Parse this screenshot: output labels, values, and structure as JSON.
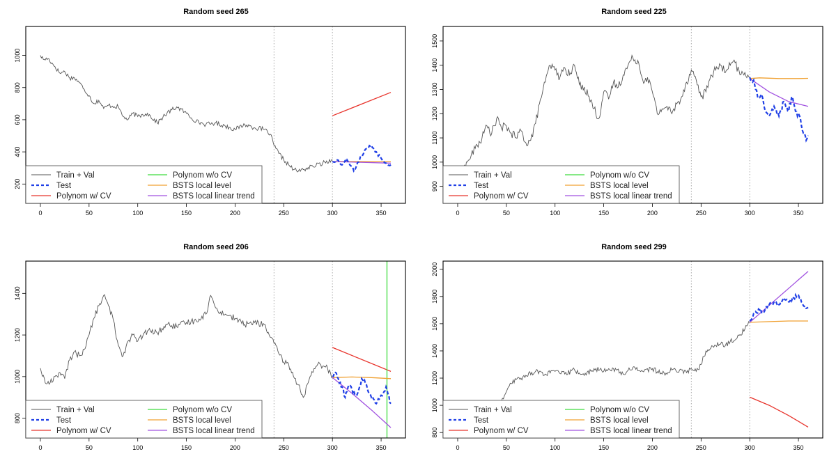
{
  "legend_labels": {
    "train_val": "Train + Val",
    "test": "Test",
    "poly_cv": "Polynom w/ CV",
    "poly_nocv": "Polynom w/o CV",
    "bsts_ll": "BSTS local level",
    "bsts_llt": "BSTS local linear trend"
  },
  "colors": {
    "train_val": "#555555",
    "test": "#1f3fe6",
    "poly_cv": "#e8342c",
    "poly_nocv": "#3ddc3d",
    "bsts_ll": "#f0a030",
    "bsts_llt": "#a050e0",
    "vline": "#aaaaaa"
  },
  "chart_data": [
    {
      "type": "line",
      "title": "Random seed 265",
      "xlim": [
        -15,
        375
      ],
      "ylim": [
        80,
        1180
      ],
      "xticks": [
        0,
        50,
        100,
        150,
        200,
        250,
        300,
        350
      ],
      "yticks": [
        200,
        400,
        600,
        800,
        1000
      ],
      "vlines": [
        240,
        300
      ],
      "train_anchors": [
        [
          0,
          1000
        ],
        [
          3,
          975
        ],
        [
          8,
          980
        ],
        [
          15,
          930
        ],
        [
          20,
          890
        ],
        [
          25,
          900
        ],
        [
          30,
          860
        ],
        [
          35,
          860
        ],
        [
          40,
          830
        ],
        [
          45,
          790
        ],
        [
          50,
          750
        ],
        [
          55,
          700
        ],
        [
          60,
          720
        ],
        [
          65,
          670
        ],
        [
          70,
          690
        ],
        [
          80,
          680
        ],
        [
          85,
          620
        ],
        [
          90,
          600
        ],
        [
          95,
          640
        ],
        [
          100,
          620
        ],
        [
          110,
          640
        ],
        [
          120,
          580
        ],
        [
          130,
          640
        ],
        [
          140,
          680
        ],
        [
          150,
          640
        ],
        [
          160,
          590
        ],
        [
          170,
          570
        ],
        [
          180,
          580
        ],
        [
          190,
          560
        ],
        [
          200,
          540
        ],
        [
          210,
          570
        ],
        [
          220,
          550
        ],
        [
          230,
          540
        ],
        [
          236,
          510
        ],
        [
          240,
          440
        ],
        [
          245,
          390
        ],
        [
          250,
          350
        ],
        [
          255,
          320
        ],
        [
          260,
          290
        ],
        [
          265,
          280
        ],
        [
          270,
          290
        ],
        [
          280,
          310
        ],
        [
          290,
          330
        ],
        [
          300,
          350
        ]
      ],
      "train_noise": 14,
      "test_anchors": [
        [
          300,
          340
        ],
        [
          305,
          350
        ],
        [
          310,
          320
        ],
        [
          315,
          350
        ],
        [
          320,
          310
        ],
        [
          322,
          280
        ],
        [
          325,
          320
        ],
        [
          330,
          380
        ],
        [
          335,
          420
        ],
        [
          340,
          440
        ],
        [
          345,
          400
        ],
        [
          350,
          360
        ],
        [
          355,
          330
        ],
        [
          360,
          320
        ]
      ],
      "test_noise": 10,
      "poly_cv": [
        [
          300,
          625
        ],
        [
          360,
          770
        ]
      ],
      "poly_nocv": null,
      "bsts_ll": [
        [
          300,
          340
        ],
        [
          360,
          340
        ]
      ],
      "bsts_llt": [
        [
          300,
          340
        ],
        [
          360,
          330
        ]
      ],
      "nocv_vertical": null
    },
    {
      "type": "line",
      "title": "Random seed 225",
      "xlim": [
        -15,
        375
      ],
      "ylim": [
        830,
        1560
      ],
      "xticks": [
        0,
        50,
        100,
        150,
        200,
        250,
        300,
        350
      ],
      "yticks": [
        900,
        1000,
        1100,
        1200,
        1300,
        1400,
        1500
      ],
      "vlines": [
        240,
        300
      ],
      "train_anchors": [
        [
          0,
          940
        ],
        [
          5,
          960
        ],
        [
          10,
          1000
        ],
        [
          20,
          1070
        ],
        [
          25,
          1100
        ],
        [
          30,
          1150
        ],
        [
          35,
          1120
        ],
        [
          40,
          1180
        ],
        [
          45,
          1140
        ],
        [
          50,
          1150
        ],
        [
          55,
          1120
        ],
        [
          60,
          1100
        ],
        [
          65,
          1130
        ],
        [
          70,
          1080
        ],
        [
          75,
          1090
        ],
        [
          80,
          1160
        ],
        [
          85,
          1260
        ],
        [
          90,
          1330
        ],
        [
          95,
          1400
        ],
        [
          100,
          1380
        ],
        [
          105,
          1350
        ],
        [
          110,
          1390
        ],
        [
          115,
          1360
        ],
        [
          120,
          1400
        ],
        [
          125,
          1320
        ],
        [
          130,
          1310
        ],
        [
          135,
          1270
        ],
        [
          140,
          1220
        ],
        [
          145,
          1180
        ],
        [
          150,
          1290
        ],
        [
          155,
          1260
        ],
        [
          160,
          1330
        ],
        [
          165,
          1310
        ],
        [
          170,
          1360
        ],
        [
          175,
          1400
        ],
        [
          180,
          1430
        ],
        [
          185,
          1420
        ],
        [
          190,
          1340
        ],
        [
          195,
          1350
        ],
        [
          200,
          1290
        ],
        [
          205,
          1200
        ],
        [
          210,
          1220
        ],
        [
          215,
          1230
        ],
        [
          220,
          1200
        ],
        [
          225,
          1240
        ],
        [
          230,
          1270
        ],
        [
          235,
          1330
        ],
        [
          240,
          1380
        ],
        [
          245,
          1340
        ],
        [
          250,
          1270
        ],
        [
          255,
          1290
        ],
        [
          260,
          1360
        ],
        [
          265,
          1380
        ],
        [
          270,
          1400
        ],
        [
          275,
          1370
        ],
        [
          280,
          1400
        ],
        [
          285,
          1410
        ],
        [
          290,
          1360
        ],
        [
          295,
          1370
        ],
        [
          300,
          1350
        ]
      ],
      "train_noise": 18,
      "test_anchors": [
        [
          300,
          1350
        ],
        [
          305,
          1320
        ],
        [
          308,
          1270
        ],
        [
          312,
          1280
        ],
        [
          316,
          1210
        ],
        [
          320,
          1190
        ],
        [
          325,
          1230
        ],
        [
          330,
          1190
        ],
        [
          335,
          1250
        ],
        [
          340,
          1210
        ],
        [
          343,
          1270
        ],
        [
          347,
          1210
        ],
        [
          352,
          1180
        ],
        [
          355,
          1120
        ],
        [
          358,
          1090
        ],
        [
          360,
          1110
        ]
      ],
      "test_noise": 12,
      "poly_cv": null,
      "poly_nocv": null,
      "bsts_ll": [
        [
          300,
          1345
        ],
        [
          310,
          1348
        ],
        [
          330,
          1345
        ],
        [
          350,
          1345
        ],
        [
          360,
          1346
        ]
      ],
      "bsts_llt": [
        [
          300,
          1345
        ],
        [
          320,
          1290
        ],
        [
          340,
          1250
        ],
        [
          360,
          1230
        ]
      ],
      "nocv_vertical": null
    },
    {
      "type": "line",
      "title": "Random seed 206",
      "xlim": [
        -15,
        375
      ],
      "ylim": [
        705,
        1555
      ],
      "xticks": [
        0,
        50,
        100,
        150,
        200,
        250,
        300,
        350
      ],
      "yticks": [
        800,
        1000,
        1200,
        1400
      ],
      "vlines": [
        240,
        300
      ],
      "train_anchors": [
        [
          0,
          1040
        ],
        [
          5,
          970
        ],
        [
          10,
          970
        ],
        [
          15,
          1000
        ],
        [
          20,
          1020
        ],
        [
          25,
          990
        ],
        [
          30,
          1080
        ],
        [
          35,
          1120
        ],
        [
          40,
          1100
        ],
        [
          45,
          1130
        ],
        [
          50,
          1200
        ],
        [
          55,
          1280
        ],
        [
          60,
          1340
        ],
        [
          65,
          1390
        ],
        [
          70,
          1340
        ],
        [
          75,
          1270
        ],
        [
          80,
          1150
        ],
        [
          85,
          1100
        ],
        [
          90,
          1170
        ],
        [
          95,
          1200
        ],
        [
          100,
          1170
        ],
        [
          110,
          1220
        ],
        [
          120,
          1210
        ],
        [
          130,
          1250
        ],
        [
          140,
          1240
        ],
        [
          150,
          1260
        ],
        [
          160,
          1270
        ],
        [
          170,
          1300
        ],
        [
          175,
          1390
        ],
        [
          180,
          1330
        ],
        [
          185,
          1310
        ],
        [
          190,
          1300
        ],
        [
          200,
          1280
        ],
        [
          210,
          1250
        ],
        [
          220,
          1260
        ],
        [
          230,
          1250
        ],
        [
          235,
          1200
        ],
        [
          240,
          1160
        ],
        [
          245,
          1110
        ],
        [
          250,
          1070
        ],
        [
          255,
          1060
        ],
        [
          260,
          1000
        ],
        [
          265,
          960
        ],
        [
          270,
          900
        ],
        [
          275,
          970
        ],
        [
          280,
          1020
        ],
        [
          285,
          1060
        ],
        [
          290,
          1050
        ],
        [
          295,
          1040
        ],
        [
          300,
          1000
        ]
      ],
      "train_noise": 15,
      "test_anchors": [
        [
          300,
          1000
        ],
        [
          303,
          1020
        ],
        [
          306,
          990
        ],
        [
          310,
          950
        ],
        [
          313,
          900
        ],
        [
          317,
          960
        ],
        [
          320,
          940
        ],
        [
          325,
          910
        ],
        [
          330,
          990
        ],
        [
          335,
          960
        ],
        [
          340,
          900
        ],
        [
          345,
          870
        ],
        [
          350,
          910
        ],
        [
          355,
          950
        ],
        [
          360,
          870
        ]
      ],
      "test_noise": 12,
      "poly_cv": [
        [
          300,
          1140
        ],
        [
          360,
          1025
        ]
      ],
      "poly_nocv": null,
      "bsts_ll": [
        [
          300,
          995
        ],
        [
          320,
          998
        ],
        [
          340,
          995
        ],
        [
          360,
          990
        ]
      ],
      "bsts_llt": [
        [
          300,
          995
        ],
        [
          320,
          920
        ],
        [
          340,
          840
        ],
        [
          360,
          755
        ]
      ],
      "nocv_vertical": 356
    },
    {
      "type": "line",
      "title": "Random seed 299",
      "xlim": [
        -15,
        375
      ],
      "ylim": [
        760,
        2060
      ],
      "xticks": [
        0,
        50,
        100,
        150,
        200,
        250,
        300,
        350
      ],
      "yticks": [
        800,
        1000,
        1200,
        1400,
        1600,
        1800,
        2000
      ],
      "vlines": [
        240,
        300
      ],
      "train_anchors": [
        [
          0,
          970
        ],
        [
          5,
          1010
        ],
        [
          10,
          990
        ],
        [
          15,
          960
        ],
        [
          20,
          990
        ],
        [
          25,
          960
        ],
        [
          30,
          1000
        ],
        [
          35,
          980
        ],
        [
          40,
          960
        ],
        [
          45,
          1030
        ],
        [
          50,
          1100
        ],
        [
          55,
          1160
        ],
        [
          60,
          1190
        ],
        [
          65,
          1200
        ],
        [
          70,
          1220
        ],
        [
          80,
          1250
        ],
        [
          90,
          1230
        ],
        [
          100,
          1250
        ],
        [
          110,
          1230
        ],
        [
          120,
          1260
        ],
        [
          130,
          1220
        ],
        [
          140,
          1270
        ],
        [
          150,
          1250
        ],
        [
          160,
          1270
        ],
        [
          170,
          1230
        ],
        [
          180,
          1280
        ],
        [
          190,
          1250
        ],
        [
          200,
          1270
        ],
        [
          210,
          1230
        ],
        [
          220,
          1260
        ],
        [
          230,
          1260
        ],
        [
          235,
          1240
        ],
        [
          240,
          1270
        ],
        [
          245,
          1250
        ],
        [
          250,
          1300
        ],
        [
          255,
          1400
        ],
        [
          260,
          1420
        ],
        [
          265,
          1440
        ],
        [
          270,
          1450
        ],
        [
          275,
          1440
        ],
        [
          280,
          1470
        ],
        [
          285,
          1480
        ],
        [
          290,
          1520
        ],
        [
          295,
          1560
        ],
        [
          300,
          1610
        ]
      ],
      "train_noise": 18,
      "test_anchors": [
        [
          300,
          1620
        ],
        [
          305,
          1680
        ],
        [
          310,
          1700
        ],
        [
          315,
          1690
        ],
        [
          320,
          1740
        ],
        [
          325,
          1760
        ],
        [
          330,
          1740
        ],
        [
          335,
          1790
        ],
        [
          340,
          1760
        ],
        [
          345,
          1790
        ],
        [
          350,
          1810
        ],
        [
          353,
          1760
        ],
        [
          357,
          1730
        ],
        [
          360,
          1720
        ]
      ],
      "test_noise": 14,
      "poly_cv": [
        [
          300,
          1060
        ],
        [
          320,
          1000
        ],
        [
          340,
          925
        ],
        [
          360,
          840
        ]
      ],
      "poly_nocv": null,
      "bsts_ll": [
        [
          300,
          1610
        ],
        [
          320,
          1615
        ],
        [
          340,
          1620
        ],
        [
          360,
          1620
        ]
      ],
      "bsts_llt": [
        [
          300,
          1610
        ],
        [
          360,
          1985
        ]
      ],
      "nocv_vertical": null
    }
  ]
}
